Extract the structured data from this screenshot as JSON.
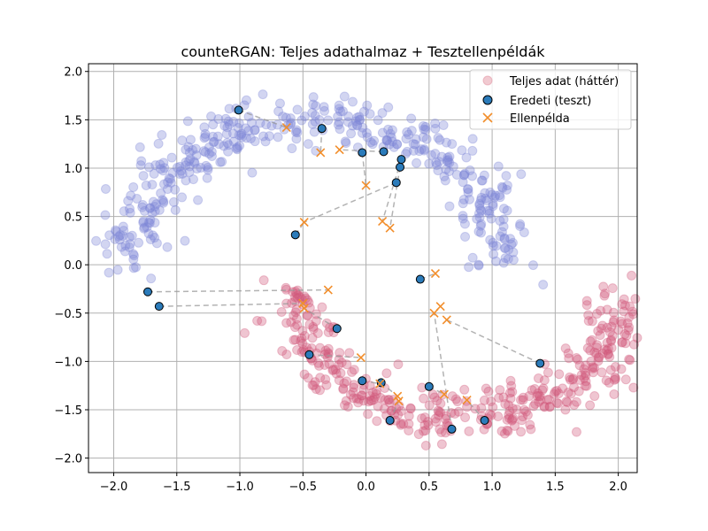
{
  "chart_data": {
    "type": "scatter",
    "title": "counteRGAN: Teljes adathalmaz + Tesztellenpéldák",
    "xlabel": "",
    "ylabel": "",
    "xlim": [
      -2.2,
      2.15
    ],
    "ylim": [
      -2.15,
      2.08
    ],
    "xticks": [
      "−2.0",
      "−1.5",
      "−1.0",
      "−0.5",
      "0.0",
      "0.5",
      "1.0",
      "1.5",
      "2.0"
    ],
    "yticks": [
      "−2.0",
      "−1.5",
      "−1.0",
      "−0.5",
      "0.0",
      "0.5",
      "1.0",
      "1.5",
      "2.0"
    ],
    "xtick_values": [
      -2.0,
      -1.5,
      -1.0,
      -0.5,
      0.0,
      0.5,
      1.0,
      1.5,
      2.0
    ],
    "ytick_values": [
      -2.0,
      -1.5,
      -1.0,
      -0.5,
      0.0,
      0.5,
      1.0,
      1.5,
      2.0
    ],
    "grid": true,
    "legend_position": "top-right",
    "legend": [
      {
        "label": "Teljes adat (háttér)",
        "marker": "circle-faded",
        "color": "#e08a99"
      },
      {
        "label": "Eredeti (teszt)",
        "marker": "circle",
        "color": "#2b7bba"
      },
      {
        "label": "Ellenpélda",
        "marker": "x",
        "color": "#f28e2b"
      }
    ],
    "background_class_colors": {
      "class0": "#7f88d8",
      "class1": "#d0587a"
    },
    "background_description": "two interleaving half-moons; upper moon (class0) from x -2.0 to 1.0, lower moon (class1) from x -0.65 to 2.0",
    "test_points": [
      {
        "x": -1.01,
        "y": 1.6
      },
      {
        "x": -0.35,
        "y": 1.41
      },
      {
        "x": 0.14,
        "y": 1.17
      },
      {
        "x": -0.03,
        "y": 1.16
      },
      {
        "x": 0.28,
        "y": 1.09
      },
      {
        "x": 0.27,
        "y": 1.01
      },
      {
        "x": 0.24,
        "y": 0.85
      },
      {
        "x": -0.56,
        "y": 0.31
      },
      {
        "x": -1.73,
        "y": -0.28
      },
      {
        "x": -1.64,
        "y": -0.43
      },
      {
        "x": 0.43,
        "y": -0.15
      },
      {
        "x": -0.23,
        "y": -0.66
      },
      {
        "x": -0.45,
        "y": -0.93
      },
      {
        "x": 1.38,
        "y": -1.02
      },
      {
        "x": -0.03,
        "y": -1.2
      },
      {
        "x": 0.12,
        "y": -1.22
      },
      {
        "x": 0.5,
        "y": -1.26
      },
      {
        "x": 0.19,
        "y": -1.61
      },
      {
        "x": 0.94,
        "y": -1.61
      },
      {
        "x": 0.68,
        "y": -1.7
      }
    ],
    "counterexamples": [
      {
        "x": -0.63,
        "y": 1.42
      },
      {
        "x": -0.36,
        "y": 1.16
      },
      {
        "x": -0.21,
        "y": 1.19
      },
      {
        "x": 0.0,
        "y": 0.82
      },
      {
        "x": 0.13,
        "y": 0.45
      },
      {
        "x": 0.19,
        "y": 0.38
      },
      {
        "x": -0.49,
        "y": 0.44
      },
      {
        "x": -0.3,
        "y": -0.26
      },
      {
        "x": -0.5,
        "y": -0.4
      },
      {
        "x": -0.49,
        "y": -0.45
      },
      {
        "x": 0.55,
        "y": -0.09
      },
      {
        "x": 0.59,
        "y": -0.43
      },
      {
        "x": 0.54,
        "y": -0.5
      },
      {
        "x": 0.64,
        "y": -0.57
      },
      {
        "x": -0.04,
        "y": -0.96
      },
      {
        "x": 0.11,
        "y": -1.23
      },
      {
        "x": 0.25,
        "y": -1.36
      },
      {
        "x": 0.26,
        "y": -1.41
      },
      {
        "x": 0.62,
        "y": -1.34
      },
      {
        "x": 0.8,
        "y": -1.4
      }
    ],
    "connections": [
      [
        0,
        0
      ],
      [
        1,
        1
      ],
      [
        2,
        2
      ],
      [
        3,
        3
      ],
      [
        4,
        4
      ],
      [
        5,
        5
      ],
      [
        6,
        6
      ],
      [
        7,
        6
      ],
      [
        8,
        7
      ],
      [
        9,
        8
      ],
      [
        10,
        10
      ],
      [
        11,
        9
      ],
      [
        12,
        14
      ],
      [
        13,
        13
      ],
      [
        14,
        15
      ],
      [
        15,
        16
      ],
      [
        16,
        18
      ],
      [
        17,
        17
      ],
      [
        18,
        19
      ],
      [
        19,
        12
      ]
    ]
  }
}
